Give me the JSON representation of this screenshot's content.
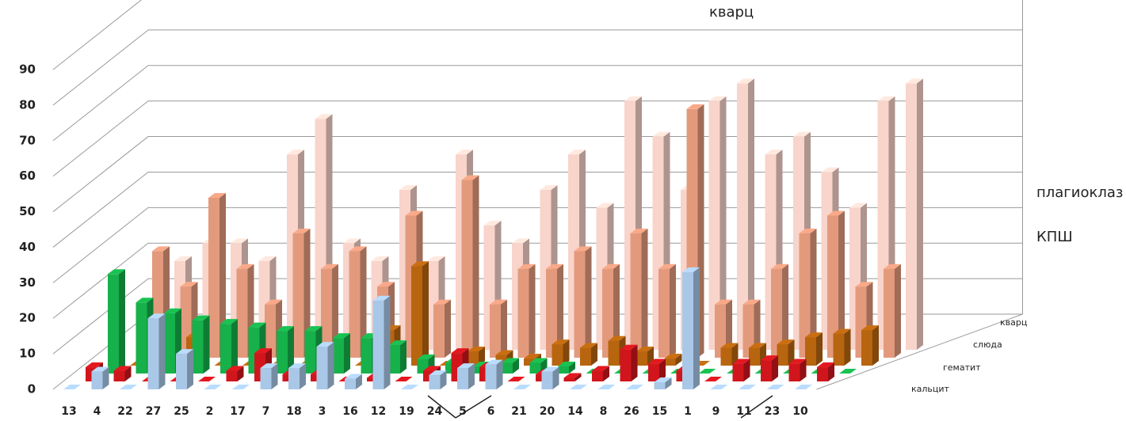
{
  "chart_data": {
    "type": "bar3d",
    "categories": [
      "13",
      "4",
      "22",
      "27",
      "25",
      "2",
      "17",
      "7",
      "18",
      "3",
      "16",
      "12",
      "19",
      "24",
      "5",
      "6",
      "21",
      "20",
      "14",
      "8",
      "26",
      "15",
      "1",
      "9",
      "11",
      "23",
      "10"
    ],
    "series": [
      {
        "name": "кальцит",
        "color": "#a9c8e8",
        "values": [
          0,
          5,
          0,
          20,
          10,
          0,
          0,
          6,
          6,
          12,
          3,
          25,
          0,
          4,
          6,
          7,
          0,
          5,
          0,
          0,
          0,
          2,
          33,
          0,
          0,
          0,
          0
        ]
      },
      {
        "name": "гематит",
        "color": "#d0161c",
        "values": [
          4,
          3,
          0,
          0,
          0,
          3,
          8,
          2,
          2,
          0,
          1,
          0,
          3,
          8,
          4,
          0,
          2,
          1,
          3,
          9,
          5,
          3,
          0,
          5,
          6,
          5,
          4
        ]
      },
      {
        "name": "слюда",
        "color": "#16b14a",
        "values": [
          28,
          20,
          17,
          15,
          14,
          13,
          12,
          12,
          10,
          10,
          8,
          4,
          3,
          2,
          3,
          3,
          2,
          0,
          0,
          0,
          0,
          0,
          0,
          0,
          0,
          0,
          0
        ]
      },
      {
        "name": "КПШ",
        "color": "#b8650f",
        "values": [
          0,
          0,
          8,
          0,
          0,
          0,
          0,
          0,
          0,
          10,
          28,
          0,
          4,
          3,
          2,
          6,
          5,
          7,
          4,
          2,
          0,
          5,
          5,
          6,
          8,
          9,
          10
        ]
      },
      {
        "name": "плагиоклаз",
        "color": "#e39a7c",
        "values": [
          30,
          20,
          45,
          25,
          15,
          35,
          25,
          30,
          20,
          40,
          15,
          50,
          15,
          25,
          25,
          30,
          25,
          35,
          25,
          70,
          15,
          15,
          25,
          35,
          40,
          20,
          25
        ]
      },
      {
        "name": "кварц",
        "color": "#f8d4cb",
        "values": [
          25,
          30,
          30,
          25,
          55,
          65,
          30,
          25,
          45,
          25,
          55,
          35,
          30,
          45,
          55,
          40,
          70,
          60,
          45,
          70,
          75,
          55,
          60,
          50,
          40,
          70,
          75
        ]
      }
    ],
    "depth_labels": [
      "кварц",
      "слюда",
      "гематит",
      "кальцит"
    ],
    "annotations": [
      "кварц",
      "плагиоклаз",
      "КПШ"
    ],
    "ylim": [
      0,
      90
    ],
    "yticks": [
      0,
      10,
      20,
      30,
      40,
      50,
      60,
      70,
      80,
      90
    ],
    "grid": true
  }
}
